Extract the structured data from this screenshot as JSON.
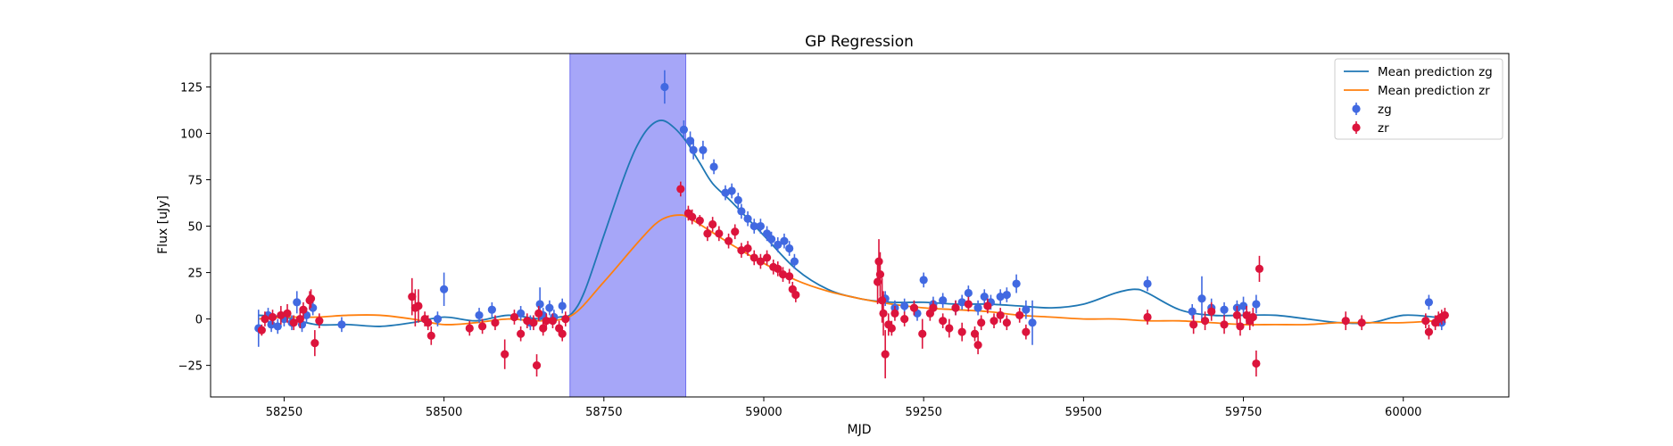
{
  "chart_data": {
    "type": "scatter",
    "title": "GP Regression",
    "xlabel": "MJD",
    "ylabel": "Flux [uJy]",
    "xlim": [
      58135,
      60165
    ],
    "ylim": [
      -42,
      143
    ],
    "xticks": [
      58250,
      58500,
      58750,
      59000,
      59250,
      59500,
      59750,
      60000
    ],
    "yticks": [
      -25,
      0,
      25,
      50,
      75,
      100,
      125
    ],
    "grid": false,
    "legend_position": "top-right",
    "shaded_region": {
      "x": [
        58697,
        58878
      ],
      "color": "#a6a6f8"
    },
    "colors": {
      "zg": "#4169e1",
      "zr": "#dc143c",
      "mean_zg": "#1f77b4",
      "mean_zr": "#ff7f0e"
    },
    "legend": [
      {
        "label": "Mean prediction zg",
        "kind": "line",
        "color": "#1f77b4"
      },
      {
        "label": "Mean prediction zr",
        "kind": "line",
        "color": "#ff7f0e"
      },
      {
        "label": "zg",
        "kind": "errorbar",
        "color": "#4169e1"
      },
      {
        "label": "zr",
        "kind": "errorbar",
        "color": "#dc143c"
      }
    ],
    "lines": [
      {
        "name": "Mean prediction zg",
        "color": "#1f77b4",
        "x": [
          58210,
          58250,
          58300,
          58350,
          58400,
          58450,
          58500,
          58550,
          58600,
          58650,
          58680,
          58700,
          58720,
          58750,
          58780,
          58800,
          58820,
          58840,
          58860,
          58880,
          58900,
          58920,
          58950,
          59000,
          59050,
          59100,
          59150,
          59200,
          59250,
          59300,
          59350,
          59400,
          59450,
          59500,
          59550,
          59580,
          59600,
          59650,
          59700,
          59750,
          59800,
          59850,
          59900,
          59950,
          60000,
          60050
        ],
        "y": [
          2,
          1,
          -3,
          -3,
          -4,
          -2,
          1,
          -1,
          2,
          0,
          1,
          3,
          15,
          45,
          75,
          92,
          103,
          107,
          103,
          95,
          84,
          73,
          63,
          45,
          27,
          16,
          11,
          9,
          9,
          8,
          8,
          7,
          6,
          8,
          14,
          16,
          14,
          5,
          2,
          2,
          2,
          0,
          -2,
          -2,
          2,
          1
        ]
      },
      {
        "name": "Mean prediction zr",
        "color": "#ff7f0e",
        "x": [
          58210,
          58250,
          58300,
          58350,
          58400,
          58450,
          58500,
          58550,
          58600,
          58650,
          58700,
          58750,
          58800,
          58830,
          58850,
          58870,
          58880,
          58900,
          58950,
          59000,
          59050,
          59100,
          59150,
          59200,
          59250,
          59300,
          59350,
          59400,
          59450,
          59500,
          59550,
          59600,
          59650,
          59700,
          59750,
          59800,
          59850,
          59900,
          59950,
          60000,
          60050
        ],
        "y": [
          0,
          1,
          1,
          2,
          2,
          0,
          -3,
          -2,
          0,
          -1,
          2,
          20,
          40,
          51,
          55,
          56,
          55,
          51,
          40,
          30,
          21,
          15,
          11,
          8,
          6,
          5,
          4,
          2,
          1,
          0,
          0,
          -1,
          -1,
          -2,
          -3,
          -3,
          -3,
          -2,
          -2,
          -2,
          -1
        ]
      }
    ],
    "series": [
      {
        "name": "zg",
        "color": "#4169e1",
        "x": [
          58210,
          58225,
          58230,
          58240,
          58250,
          58262,
          58270,
          58278,
          58285,
          58295,
          58340,
          58490,
          58500,
          58555,
          58575,
          58620,
          58635,
          58650,
          58655,
          58665,
          58672,
          58685,
          58845,
          58875,
          58885,
          58890,
          58905,
          58922,
          58940,
          58950,
          58960,
          58965,
          58975,
          58985,
          58995,
          59005,
          59012,
          59022,
          59032,
          59040,
          59048,
          59190,
          59205,
          59220,
          59240,
          59250,
          59265,
          59280,
          59300,
          59310,
          59320,
          59335,
          59345,
          59355,
          59370,
          59380,
          59395,
          59410,
          59420,
          59600,
          59670,
          59685,
          59700,
          59720,
          59740,
          59750,
          59770,
          60040,
          60060
        ],
        "y": [
          -5,
          2,
          -3,
          -4,
          0,
          -2,
          9,
          -3,
          2,
          6,
          -3,
          0,
          16,
          2,
          5,
          3,
          -2,
          8,
          2,
          6,
          1,
          7,
          125,
          102,
          96,
          91,
          91,
          82,
          68,
          69,
          64,
          58,
          54,
          50,
          50,
          46,
          43,
          40,
          42,
          38,
          31,
          11,
          6,
          7,
          3,
          21,
          8,
          10,
          6,
          9,
          14,
          6,
          12,
          9,
          12,
          13,
          19,
          5,
          -2,
          19,
          4,
          11,
          6,
          5,
          6,
          7,
          8,
          9,
          -2
        ],
        "err": [
          10,
          4,
          4,
          4,
          4,
          4,
          6,
          4,
          4,
          4,
          4,
          4,
          9,
          4,
          4,
          4,
          4,
          9,
          4,
          4,
          4,
          4,
          9,
          5,
          5,
          5,
          5,
          4,
          4,
          4,
          4,
          4,
          4,
          4,
          4,
          4,
          4,
          4,
          4,
          4,
          4,
          4,
          4,
          4,
          4,
          4,
          4,
          4,
          4,
          4,
          4,
          4,
          4,
          4,
          4,
          4,
          5,
          5,
          12,
          4,
          4,
          12,
          5,
          4,
          4,
          5,
          5,
          4,
          4
        ]
      },
      {
        "name": "zr",
        "color": "#dc143c",
        "x": [
          58215,
          58220,
          58232,
          58245,
          58255,
          58265,
          58275,
          58280,
          58290,
          58292,
          58298,
          58305,
          58450,
          58455,
          58460,
          58470,
          58475,
          58480,
          58540,
          58560,
          58580,
          58595,
          58610,
          58620,
          58630,
          58640,
          58645,
          58648,
          58655,
          58660,
          58670,
          58680,
          58685,
          58690,
          58870,
          58882,
          58888,
          58900,
          58912,
          58920,
          58930,
          58945,
          58955,
          58965,
          58975,
          58985,
          58995,
          59005,
          59015,
          59022,
          59030,
          59040,
          59045,
          59050,
          59178,
          59180,
          59182,
          59185,
          59187,
          59190,
          59195,
          59200,
          59205,
          59220,
          59235,
          59248,
          59260,
          59265,
          59280,
          59290,
          59300,
          59310,
          59320,
          59330,
          59335,
          59340,
          59350,
          59360,
          59370,
          59380,
          59400,
          59410,
          59600,
          59672,
          59690,
          59700,
          59720,
          59740,
          59745,
          59755,
          59760,
          59765,
          59770,
          59775,
          59910,
          59935,
          60035,
          60040,
          60050,
          60055,
          60060,
          60065
        ],
        "y": [
          -6,
          0,
          1,
          2,
          3,
          -2,
          0,
          5,
          10,
          11,
          -13,
          -1,
          12,
          6,
          7,
          0,
          -2,
          -9,
          -5,
          -4,
          -2,
          -19,
          1,
          -8,
          -1,
          -2,
          -25,
          3,
          -5,
          -1,
          -1,
          -5,
          -8,
          0,
          70,
          57,
          55,
          53,
          46,
          51,
          46,
          42,
          47,
          37,
          38,
          33,
          31,
          33,
          28,
          27,
          24,
          23,
          16,
          13,
          20,
          31,
          24,
          10,
          3,
          -19,
          -3,
          -5,
          3,
          0,
          6,
          -8,
          3,
          6,
          -1,
          -5,
          6,
          -7,
          8,
          -8,
          -14,
          -2,
          7,
          -1,
          2,
          -2,
          2,
          -7,
          1,
          -3,
          -1,
          4,
          -3,
          2,
          -4,
          2,
          -1,
          1,
          -24,
          27,
          -1,
          -2,
          -1,
          -7,
          -2,
          0,
          1,
          2
        ],
        "err": [
          3,
          4,
          4,
          5,
          5,
          4,
          5,
          4,
          5,
          5,
          7,
          4,
          10,
          10,
          9,
          4,
          4,
          5,
          4,
          4,
          4,
          8,
          4,
          4,
          4,
          4,
          6,
          4,
          4,
          4,
          4,
          4,
          4,
          4,
          4,
          4,
          4,
          3,
          4,
          4,
          4,
          4,
          4,
          4,
          4,
          4,
          4,
          4,
          4,
          4,
          4,
          4,
          4,
          4,
          12,
          12,
          12,
          12,
          12,
          13,
          6,
          4,
          4,
          4,
          4,
          8,
          4,
          4,
          4,
          5,
          4,
          5,
          4,
          4,
          5,
          4,
          4,
          4,
          4,
          4,
          4,
          4,
          4,
          5,
          5,
          5,
          5,
          5,
          5,
          5,
          5,
          5,
          7,
          7,
          5,
          4,
          4,
          4,
          4,
          4,
          4,
          4
        ]
      }
    ]
  }
}
